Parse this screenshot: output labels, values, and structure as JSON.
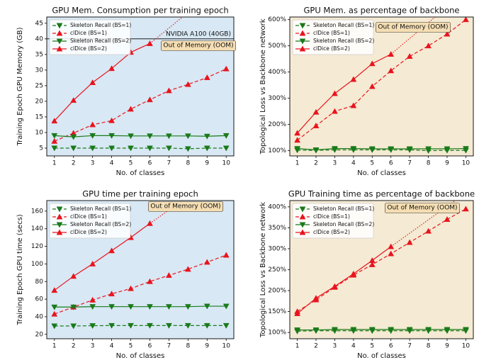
{
  "chart_data": [
    {
      "type": "line",
      "title": "GPU Mem. Consumption per training epoch",
      "xlabel": "No. of classes",
      "ylabel": "Training Epoch GPU Memory (GB)",
      "facecolor": "#d8e8f4",
      "legend": "upper left",
      "x": [
        1,
        2,
        3,
        4,
        5,
        6,
        7,
        8,
        9,
        10
      ],
      "xlim": [
        0.6,
        10.4
      ],
      "xticks": [
        1,
        2,
        3,
        4,
        5,
        6,
        7,
        8,
        9,
        10
      ],
      "ylim": [
        2.5,
        47
      ],
      "yticks": [
        5,
        10,
        15,
        20,
        25,
        30,
        35,
        40,
        45
      ],
      "hline": {
        "value": 40,
        "label": "NVIDIA A100 (40GB)"
      },
      "annotation": "Out of Memory (OOM)",
      "series": [
        {
          "name": "Skeleton Recall (BS=1)",
          "color": "#1a7a1a",
          "linestyle": "dashed",
          "marker": "v",
          "values": [
            5,
            5,
            5,
            5,
            5,
            5,
            5,
            4.8,
            5,
            5
          ]
        },
        {
          "name": "clDice (BS=1)",
          "color": "#e8141e",
          "linestyle": "dashed",
          "marker": "^",
          "values": [
            7.2,
            9.8,
            12.5,
            13.8,
            17.5,
            20.5,
            23.4,
            25.4,
            27.6,
            30.4
          ]
        },
        {
          "name": "Skeleton Recall (BS=2)",
          "color": "#1a7a1a",
          "linestyle": "solid",
          "marker": "v",
          "values": [
            9,
            8.6,
            9,
            9,
            8.9,
            8.9,
            8.9,
            8.9,
            8.8,
            9
          ]
        },
        {
          "name": "clDice (BS=2)",
          "color": "#e8141e",
          "linestyle": "solid",
          "marker": "^",
          "values": [
            13.7,
            20.3,
            26,
            30.5,
            35.7,
            38.5,
            null,
            null,
            null,
            null
          ]
        }
      ]
    },
    {
      "type": "line",
      "title": "GPU Mem. as percentage of backbone",
      "xlabel": "No. of classes",
      "ylabel": "Topological Loss vs Backbone network",
      "facecolor": "#f5ead3",
      "legend": "upper left",
      "x": [
        1,
        2,
        3,
        4,
        5,
        6,
        7,
        8,
        9,
        10
      ],
      "xlim": [
        0.6,
        10.4
      ],
      "xticks": [
        1,
        2,
        3,
        4,
        5,
        6,
        7,
        8,
        9,
        10
      ],
      "ylim": [
        80,
        610
      ],
      "yticks": [
        {
          "value": 100,
          "label": "100%"
        },
        {
          "value": 200,
          "label": "200%"
        },
        {
          "value": 300,
          "label": "300%"
        },
        {
          "value": 400,
          "label": "400%"
        },
        {
          "value": 500,
          "label": "500%"
        },
        {
          "value": 600,
          "label": "600%"
        }
      ],
      "annotation": "Out of Memory (OOM)",
      "series": [
        {
          "name": "Skeleton Recall (BS=1)",
          "color": "#1a7a1a",
          "linestyle": "dashed",
          "marker": "v",
          "values": [
            102,
            101,
            103,
            103,
            103,
            103,
            103,
            100,
            101,
            101
          ]
        },
        {
          "name": "clDice (BS=1)",
          "color": "#e8141e",
          "linestyle": "dashed",
          "marker": "^",
          "values": [
            140,
            195,
            250,
            272,
            345,
            405,
            460,
            500,
            545,
            600
          ]
        },
        {
          "name": "Skeleton Recall (BS=2)",
          "color": "#1a7a1a",
          "linestyle": "solid",
          "marker": "v",
          "values": [
            108,
            103,
            108,
            108,
            107,
            107,
            107,
            107,
            107,
            108
          ]
        },
        {
          "name": "clDice (BS=2)",
          "color": "#e8141e",
          "linestyle": "solid",
          "marker": "^",
          "values": [
            167,
            247,
            318,
            372,
            432,
            468,
            null,
            null,
            null,
            null
          ]
        }
      ]
    },
    {
      "type": "line",
      "title": "GPU time per training epoch",
      "xlabel": "No. of classes",
      "ylabel": "Training Epoch GPU time (secs)",
      "facecolor": "#d8e8f4",
      "legend": "upper left",
      "x": [
        1,
        2,
        3,
        4,
        5,
        6,
        7,
        8,
        9,
        10
      ],
      "xlim": [
        0.6,
        10.4
      ],
      "xticks": [
        1,
        2,
        3,
        4,
        5,
        6,
        7,
        8,
        9,
        10
      ],
      "ylim": [
        15,
        172
      ],
      "yticks": [
        20,
        40,
        60,
        80,
        100,
        120,
        140,
        160
      ],
      "annotation": "Out of Memory (OOM)",
      "series": [
        {
          "name": "Skeleton Recall (BS=1)",
          "color": "#1a7a1a",
          "linestyle": "dashed",
          "marker": "v",
          "values": [
            29.5,
            29.5,
            29.8,
            30,
            30,
            30,
            30,
            30,
            30,
            30
          ]
        },
        {
          "name": "clDice (BS=1)",
          "color": "#e8141e",
          "linestyle": "dashed",
          "marker": "^",
          "values": [
            43,
            51,
            59,
            66,
            72,
            80,
            87,
            94,
            102,
            110
          ]
        },
        {
          "name": "Skeleton Recall (BS=2)",
          "color": "#1a7a1a",
          "linestyle": "solid",
          "marker": "v",
          "values": [
            51,
            51,
            51.5,
            51.5,
            51.5,
            51.5,
            51.5,
            51.5,
            52,
            52
          ]
        },
        {
          "name": "clDice (BS=2)",
          "color": "#e8141e",
          "linestyle": "solid",
          "marker": "^",
          "values": [
            70,
            86,
            100,
            115,
            130,
            146,
            null,
            null,
            null,
            null
          ]
        }
      ]
    },
    {
      "type": "line",
      "title": "GPU Training time as percentage of backbone",
      "xlabel": "No. of classes",
      "ylabel": "Topological Loss vs Backbone network",
      "facecolor": "#f5ead3",
      "legend": "upper left",
      "x": [
        1,
        2,
        3,
        4,
        5,
        6,
        7,
        8,
        9,
        10
      ],
      "xlim": [
        0.6,
        10.4
      ],
      "xticks": [
        1,
        2,
        3,
        4,
        5,
        6,
        7,
        8,
        9,
        10
      ],
      "ylim": [
        85,
        415
      ],
      "yticks": [
        {
          "value": 100,
          "label": "100%"
        },
        {
          "value": 150,
          "label": "150%"
        },
        {
          "value": 200,
          "label": "200%"
        },
        {
          "value": 250,
          "label": "250%"
        },
        {
          "value": 300,
          "label": "300%"
        },
        {
          "value": 350,
          "label": "350%"
        },
        {
          "value": 400,
          "label": "400%"
        }
      ],
      "annotation": "Out of Memory (OOM)",
      "series": [
        {
          "name": "Skeleton Recall (BS=1)",
          "color": "#1a7a1a",
          "linestyle": "dashed",
          "marker": "v",
          "values": [
            103,
            104,
            104,
            104,
            104,
            104,
            104,
            104,
            104,
            104
          ]
        },
        {
          "name": "clDice (BS=1)",
          "color": "#e8141e",
          "linestyle": "dashed",
          "marker": "^",
          "values": [
            150,
            178,
            208,
            237,
            262,
            288,
            315,
            342,
            370,
            395
          ]
        },
        {
          "name": "Skeleton Recall (BS=2)",
          "color": "#1a7a1a",
          "linestyle": "solid",
          "marker": "v",
          "values": [
            106,
            106,
            107,
            107,
            107,
            107,
            107,
            107,
            107,
            107
          ]
        },
        {
          "name": "clDice (BS=2)",
          "color": "#e8141e",
          "linestyle": "solid",
          "marker": "^",
          "values": [
            145,
            182,
            210,
            240,
            272,
            305,
            null,
            null,
            null,
            null
          ]
        }
      ]
    }
  ]
}
